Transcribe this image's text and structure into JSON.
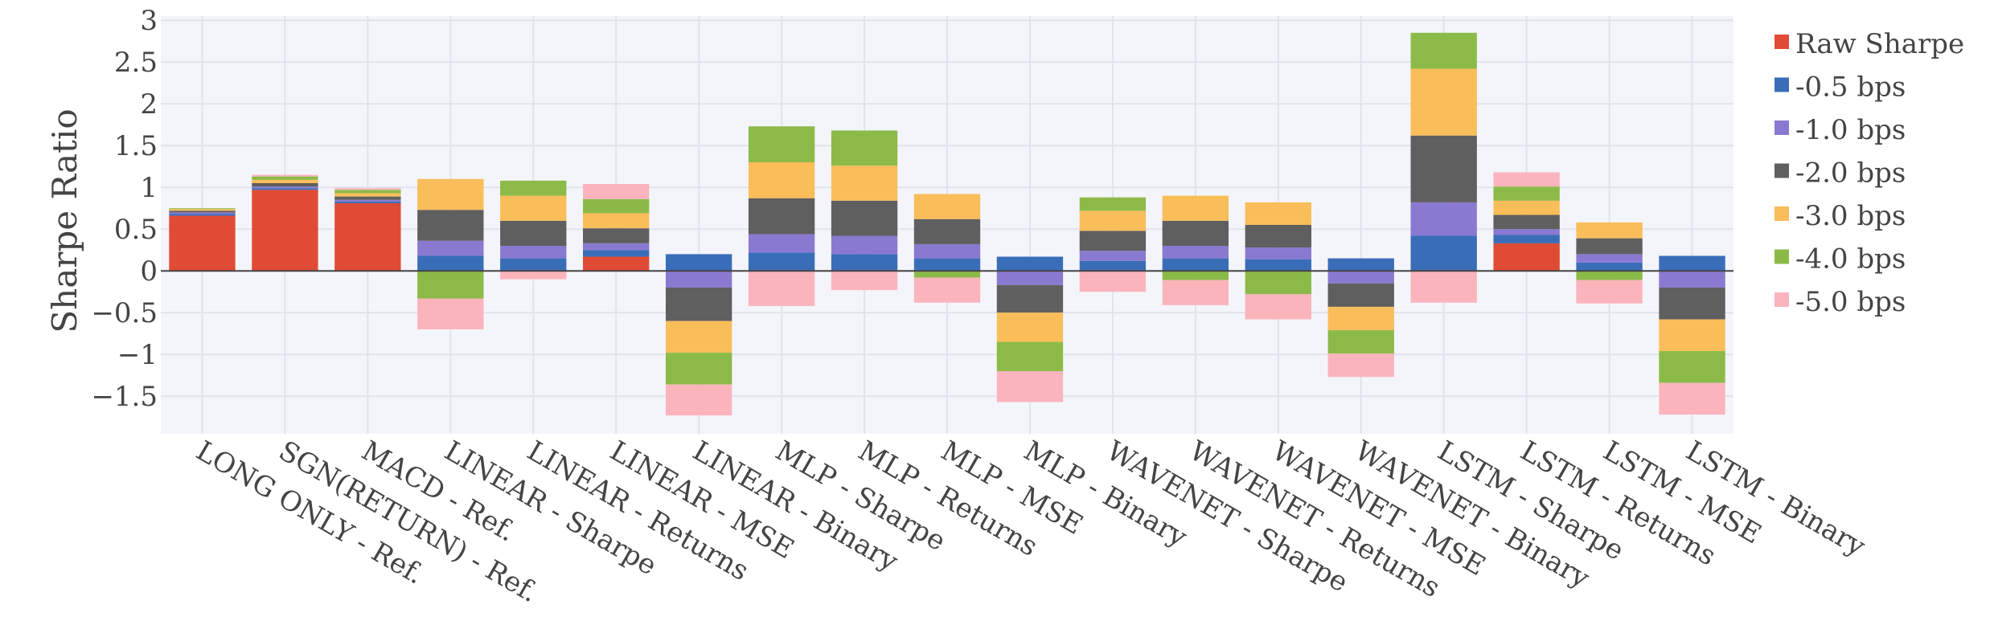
{
  "chart_data": {
    "type": "bar",
    "barmode": "relative",
    "ylabel": "Sharpe Ratio",
    "xlabel": "",
    "ylim": [
      -1.95,
      3.05
    ],
    "yticks": [
      -1.5,
      -1,
      -0.5,
      0,
      0.5,
      1,
      1.5,
      2,
      2.5,
      3
    ],
    "ytick_labels": [
      "−1.5",
      "−1",
      "−0.5",
      "0",
      "0.5",
      "1",
      "1.5",
      "2",
      "2.5",
      "3"
    ],
    "grid": true,
    "legend_position": "right",
    "categories": [
      "LONG ONLY - Ref.",
      "SGN(RETURN) - Ref.",
      "MACD - Ref.",
      "LINEAR - Sharpe",
      "LINEAR - Returns",
      "LINEAR - MSE",
      "LINEAR - Binary",
      "MLP - Sharpe",
      "MLP - Returns",
      "MLP - MSE",
      "MLP - Binary",
      "WAVENET - Sharpe",
      "WAVENET - Returns",
      "WAVENET - MSE",
      "WAVENET - Binary",
      "LSTM - Sharpe",
      "LSTM - Returns",
      "LSTM - MSE",
      "LSTM - Binary"
    ],
    "series": [
      {
        "name": "Raw Sharpe",
        "color": "#e04b35",
        "values": [
          0.66,
          0.97,
          0.81,
          0.0,
          0.0,
          0.17,
          0.0,
          0.0,
          0.0,
          0.0,
          0.0,
          0.0,
          0.0,
          0.0,
          0.0,
          0.0,
          0.33,
          0.0,
          0.0
        ]
      },
      {
        "name": "-0.5 bps",
        "color": "#3a6db8",
        "values": [
          0.02,
          0.02,
          0.02,
          0.18,
          0.15,
          0.08,
          0.2,
          0.22,
          0.2,
          0.15,
          0.17,
          0.12,
          0.15,
          0.14,
          0.15,
          0.42,
          0.1,
          0.1,
          0.18
        ]
      },
      {
        "name": "-1.0 bps",
        "color": "#8a79d1",
        "values": [
          0.02,
          0.02,
          0.02,
          0.18,
          0.15,
          0.08,
          -0.2,
          0.22,
          0.22,
          0.17,
          -0.17,
          0.12,
          0.15,
          0.14,
          -0.15,
          0.4,
          0.07,
          0.1,
          -0.2
        ]
      },
      {
        "name": "-2.0 bps",
        "color": "#5f5f5f",
        "values": [
          0.02,
          0.04,
          0.04,
          0.37,
          0.3,
          0.18,
          -0.4,
          0.43,
          0.42,
          0.3,
          -0.33,
          0.24,
          0.3,
          0.27,
          -0.28,
          0.8,
          0.17,
          0.19,
          -0.38
        ]
      },
      {
        "name": "-3.0 bps",
        "color": "#f9bd5a",
        "values": [
          0.02,
          0.04,
          0.04,
          0.37,
          0.3,
          0.18,
          -0.38,
          0.43,
          0.42,
          0.3,
          -0.35,
          0.24,
          0.3,
          0.27,
          -0.28,
          0.8,
          0.17,
          0.19,
          -0.38
        ]
      },
      {
        "name": "-4.0 bps",
        "color": "#8cba48",
        "values": [
          0.01,
          0.04,
          0.04,
          -0.33,
          0.18,
          0.17,
          -0.38,
          0.43,
          0.42,
          -0.08,
          -0.35,
          0.16,
          -0.11,
          -0.28,
          -0.28,
          0.43,
          0.17,
          -0.11,
          -0.38
        ]
      },
      {
        "name": "-5.0 bps",
        "color": "#fbb4bc",
        "values": [
          0.0,
          0.02,
          0.02,
          -0.37,
          -0.1,
          0.18,
          -0.37,
          -0.42,
          -0.23,
          -0.3,
          -0.37,
          -0.25,
          -0.3,
          -0.3,
          -0.28,
          -0.38,
          0.17,
          -0.28,
          -0.38
        ]
      }
    ]
  }
}
